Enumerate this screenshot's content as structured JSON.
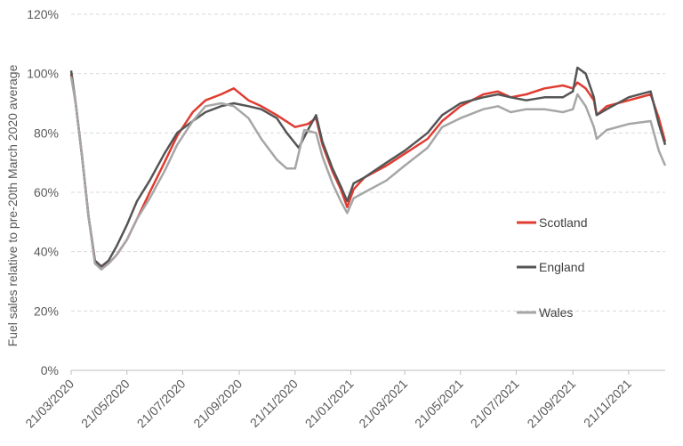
{
  "chart_data": {
    "type": "line",
    "title": "",
    "ylabel": "Fuel sales relative to pre-20th March 2020 average",
    "xlabel": "",
    "ylim": [
      0,
      120
    ],
    "ytick_labels": [
      "0%",
      "20%",
      "40%",
      "60%",
      "80%",
      "100%",
      "120%"
    ],
    "xtick_labels": [
      "21/03/2020",
      "21/05/2020",
      "21/07/2020",
      "21/09/2020",
      "21/11/2020",
      "21/01/2021",
      "21/03/2021",
      "21/05/2021",
      "21/07/2021",
      "21/09/2021",
      "21/11/2021"
    ],
    "x_start": "2020-03-21",
    "x_end": "2021-12-31",
    "grid": "horizontal dashed",
    "legend": "right",
    "series": [
      {
        "name": "Scotland",
        "color": "#e03c31",
        "points": [
          [
            "2020-03-21",
            100
          ],
          [
            "2020-03-26",
            90
          ],
          [
            "2020-04-02",
            72
          ],
          [
            "2020-04-09",
            52
          ],
          [
            "2020-04-16",
            37
          ],
          [
            "2020-04-23",
            35
          ],
          [
            "2020-05-01",
            36
          ],
          [
            "2020-05-10",
            39
          ],
          [
            "2020-05-21",
            44
          ],
          [
            "2020-06-01",
            51
          ],
          [
            "2020-06-15",
            60
          ],
          [
            "2020-07-01",
            70
          ],
          [
            "2020-07-15",
            79
          ],
          [
            "2020-08-01",
            87
          ],
          [
            "2020-08-15",
            91
          ],
          [
            "2020-09-01",
            93
          ],
          [
            "2020-09-15",
            95
          ],
          [
            "2020-10-01",
            91
          ],
          [
            "2020-10-15",
            89
          ],
          [
            "2020-11-01",
            86
          ],
          [
            "2020-11-21",
            82
          ],
          [
            "2020-12-05",
            83
          ],
          [
            "2020-12-14",
            85
          ],
          [
            "2020-12-21",
            76
          ],
          [
            "2021-01-01",
            67
          ],
          [
            "2021-01-10",
            61
          ],
          [
            "2021-01-17",
            55
          ],
          [
            "2021-01-24",
            61
          ],
          [
            "2021-02-05",
            65
          ],
          [
            "2021-03-01",
            69
          ],
          [
            "2021-03-21",
            73
          ],
          [
            "2021-04-15",
            78
          ],
          [
            "2021-05-01",
            84
          ],
          [
            "2021-05-21",
            89
          ],
          [
            "2021-06-15",
            93
          ],
          [
            "2021-07-01",
            94
          ],
          [
            "2021-07-15",
            92
          ],
          [
            "2021-08-01",
            93
          ],
          [
            "2021-08-21",
            95
          ],
          [
            "2021-09-10",
            96
          ],
          [
            "2021-09-21",
            95
          ],
          [
            "2021-09-26",
            97
          ],
          [
            "2021-10-05",
            95
          ],
          [
            "2021-10-14",
            91
          ],
          [
            "2021-10-17",
            86
          ],
          [
            "2021-10-28",
            89
          ],
          [
            "2021-11-21",
            91
          ],
          [
            "2021-12-15",
            93
          ],
          [
            "2021-12-24",
            85
          ],
          [
            "2021-12-31",
            77
          ]
        ]
      },
      {
        "name": "England",
        "color": "#555555",
        "points": [
          [
            "2020-03-21",
            101
          ],
          [
            "2020-03-26",
            90
          ],
          [
            "2020-04-02",
            72
          ],
          [
            "2020-04-09",
            52
          ],
          [
            "2020-04-16",
            37
          ],
          [
            "2020-04-23",
            35
          ],
          [
            "2020-05-01",
            37
          ],
          [
            "2020-05-10",
            42
          ],
          [
            "2020-05-21",
            49
          ],
          [
            "2020-06-01",
            57
          ],
          [
            "2020-06-15",
            64
          ],
          [
            "2020-07-01",
            73
          ],
          [
            "2020-07-15",
            80
          ],
          [
            "2020-08-01",
            84
          ],
          [
            "2020-08-15",
            87
          ],
          [
            "2020-09-01",
            89
          ],
          [
            "2020-09-15",
            90
          ],
          [
            "2020-10-01",
            89
          ],
          [
            "2020-10-15",
            88
          ],
          [
            "2020-11-01",
            85
          ],
          [
            "2020-11-12",
            80
          ],
          [
            "2020-11-25",
            75
          ],
          [
            "2020-12-05",
            81
          ],
          [
            "2020-12-14",
            86
          ],
          [
            "2020-12-21",
            77
          ],
          [
            "2021-01-01",
            68
          ],
          [
            "2021-01-10",
            62
          ],
          [
            "2021-01-17",
            57
          ],
          [
            "2021-01-24",
            63
          ],
          [
            "2021-02-05",
            65
          ],
          [
            "2021-03-01",
            70
          ],
          [
            "2021-03-21",
            74
          ],
          [
            "2021-04-15",
            80
          ],
          [
            "2021-05-01",
            86
          ],
          [
            "2021-05-21",
            90
          ],
          [
            "2021-06-15",
            92
          ],
          [
            "2021-07-01",
            93
          ],
          [
            "2021-07-15",
            92
          ],
          [
            "2021-08-01",
            91
          ],
          [
            "2021-08-21",
            92
          ],
          [
            "2021-09-10",
            92
          ],
          [
            "2021-09-21",
            94
          ],
          [
            "2021-09-26",
            102
          ],
          [
            "2021-10-05",
            100
          ],
          [
            "2021-10-14",
            92
          ],
          [
            "2021-10-17",
            86
          ],
          [
            "2021-10-28",
            88
          ],
          [
            "2021-11-21",
            92
          ],
          [
            "2021-12-15",
            94
          ],
          [
            "2021-12-24",
            83
          ],
          [
            "2021-12-31",
            76
          ]
        ]
      },
      {
        "name": "Wales",
        "color": "#a6a6a6",
        "points": [
          [
            "2020-03-21",
            99
          ],
          [
            "2020-03-26",
            90
          ],
          [
            "2020-04-02",
            72
          ],
          [
            "2020-04-09",
            52
          ],
          [
            "2020-04-16",
            36
          ],
          [
            "2020-04-23",
            34
          ],
          [
            "2020-05-01",
            36
          ],
          [
            "2020-05-10",
            39
          ],
          [
            "2020-05-21",
            44
          ],
          [
            "2020-06-01",
            51
          ],
          [
            "2020-06-15",
            58
          ],
          [
            "2020-07-01",
            67
          ],
          [
            "2020-07-15",
            76
          ],
          [
            "2020-08-01",
            84
          ],
          [
            "2020-08-15",
            89
          ],
          [
            "2020-09-01",
            90
          ],
          [
            "2020-09-15",
            89
          ],
          [
            "2020-10-01",
            85
          ],
          [
            "2020-10-15",
            78
          ],
          [
            "2020-11-01",
            71
          ],
          [
            "2020-11-12",
            68
          ],
          [
            "2020-11-21",
            68
          ],
          [
            "2020-12-01",
            81
          ],
          [
            "2020-12-14",
            80
          ],
          [
            "2020-12-21",
            72
          ],
          [
            "2021-01-01",
            63
          ],
          [
            "2021-01-10",
            57
          ],
          [
            "2021-01-17",
            53
          ],
          [
            "2021-01-24",
            58
          ],
          [
            "2021-02-05",
            60
          ],
          [
            "2021-03-01",
            64
          ],
          [
            "2021-03-21",
            69
          ],
          [
            "2021-04-15",
            75
          ],
          [
            "2021-05-01",
            82
          ],
          [
            "2021-05-21",
            85
          ],
          [
            "2021-06-15",
            88
          ],
          [
            "2021-07-01",
            89
          ],
          [
            "2021-07-15",
            87
          ],
          [
            "2021-08-01",
            88
          ],
          [
            "2021-08-21",
            88
          ],
          [
            "2021-09-10",
            87
          ],
          [
            "2021-09-21",
            88
          ],
          [
            "2021-09-26",
            93
          ],
          [
            "2021-10-05",
            89
          ],
          [
            "2021-10-14",
            82
          ],
          [
            "2021-10-17",
            78
          ],
          [
            "2021-10-28",
            81
          ],
          [
            "2021-11-21",
            83
          ],
          [
            "2021-12-15",
            84
          ],
          [
            "2021-12-24",
            74
          ],
          [
            "2021-12-31",
            69
          ]
        ]
      }
    ]
  }
}
